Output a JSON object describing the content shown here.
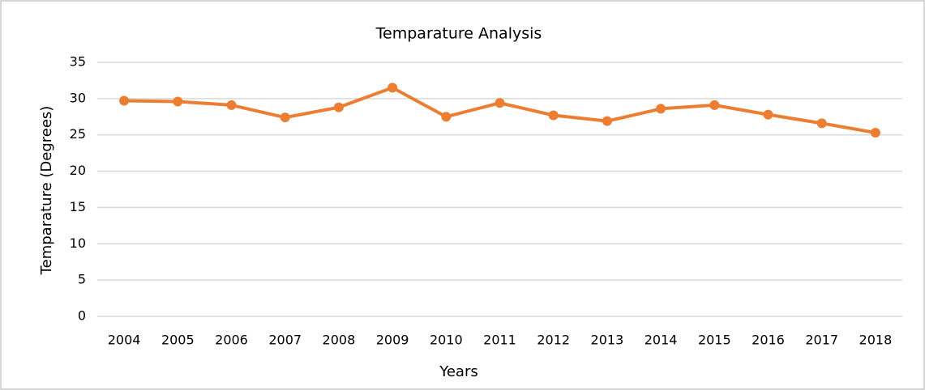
{
  "chart_data": {
    "type": "line",
    "title": "Temparature Analysis",
    "x_label": "Years",
    "y_label": "Temparature (Degrees)",
    "categories": [
      "2004",
      "2005",
      "2006",
      "2007",
      "2008",
      "2009",
      "2010",
      "2011",
      "2012",
      "2013",
      "2014",
      "2015",
      "2016",
      "2017",
      "2018"
    ],
    "series": [
      {
        "name": "Temparature",
        "color": "#ed7d31",
        "values": [
          29.7,
          29.6,
          29.1,
          27.4,
          28.8,
          31.5,
          27.5,
          29.4,
          27.7,
          26.9,
          28.6,
          29.1,
          27.8,
          26.6,
          25.3
        ]
      }
    ],
    "ylim": [
      0,
      35
    ],
    "yticks": [
      0,
      5,
      10,
      15,
      20,
      25,
      30,
      35
    ],
    "grid": true
  }
}
